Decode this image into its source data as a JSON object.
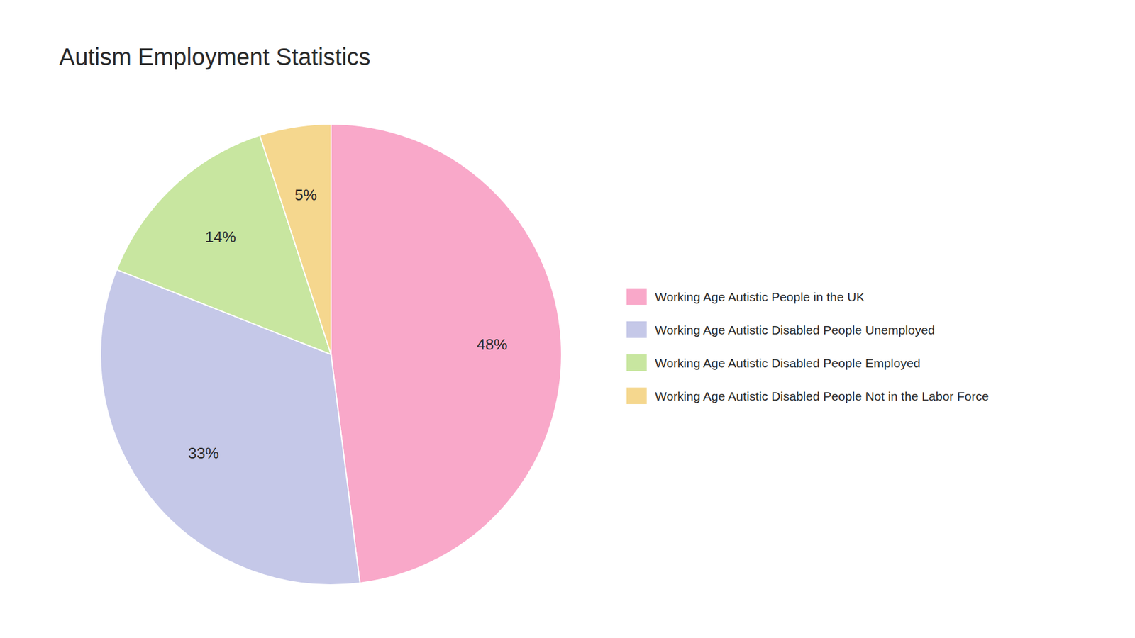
{
  "chart_data": {
    "type": "pie",
    "title": "Autism Employment Statistics",
    "categories": [
      "Working Age Autistic People in the UK",
      "Working Age Autistic Disabled People Unemployed",
      "Working Age Autistic Disabled People Employed",
      "Working Age Autistic Disabled People Not in the Labor Force"
    ],
    "values": [
      48,
      33,
      14,
      5
    ],
    "value_labels": [
      "48%",
      "33%",
      "14%",
      "5%"
    ],
    "colors": [
      "#F9A8C9",
      "#C5C8E8",
      "#C8E6A0",
      "#F5D78E"
    ],
    "data_labels": true,
    "legend": "right"
  }
}
